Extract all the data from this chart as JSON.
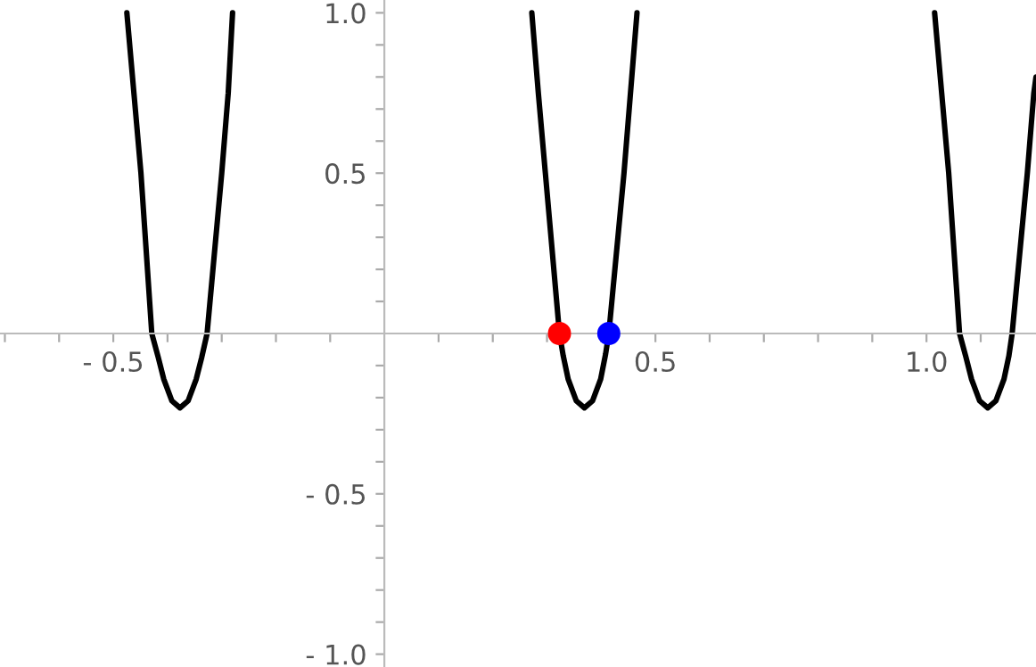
{
  "chart_data": {
    "type": "line",
    "series": [
      {
        "color": "#000000",
        "x": [
          -0.475,
          -0.462,
          -0.449,
          -0.429,
          -0.417,
          -0.407,
          -0.392,
          -0.377,
          -0.362,
          -0.347,
          -0.337,
          -0.327,
          -0.3,
          -0.288,
          -0.28
        ],
        "values": [
          1.0,
          0.75,
          0.5,
          0.0,
          -0.075,
          -0.142,
          -0.21,
          -0.232,
          -0.21,
          -0.142,
          -0.075,
          0.0,
          0.5,
          0.75,
          1.0
        ]
      },
      {
        "color": "#000000",
        "x": [
          0.272,
          0.284,
          0.297,
          0.323,
          0.33,
          0.339,
          0.354,
          0.369,
          0.384,
          0.399,
          0.408,
          0.414,
          0.442,
          0.454,
          0.466
        ],
        "values": [
          1.0,
          0.75,
          0.5,
          0.0,
          -0.07,
          -0.142,
          -0.21,
          -0.232,
          -0.21,
          -0.142,
          -0.065,
          0.0,
          0.5,
          0.75,
          1.0
        ]
      },
      {
        "color": "#000000",
        "x": [
          1.015,
          1.028,
          1.041,
          1.061,
          1.073,
          1.083,
          1.098,
          1.113,
          1.128,
          1.143,
          1.152,
          1.158,
          1.186,
          1.198,
          1.202
        ],
        "values": [
          1.0,
          0.75,
          0.5,
          0.0,
          -0.075,
          -0.142,
          -0.21,
          -0.232,
          -0.21,
          -0.142,
          -0.07,
          0.0,
          0.5,
          0.75,
          0.8
        ]
      },
      {
        "type": "scatter",
        "marker": "circle",
        "color": "#ff0000",
        "x": [
          0.323
        ],
        "values": [
          0.0
        ]
      },
      {
        "type": "scatter",
        "marker": "circle",
        "color": "#0000ff",
        "x": [
          0.414
        ],
        "values": [
          0.0
        ]
      }
    ],
    "xlim": [
      -0.709,
      1.202
    ],
    "ylim": [
      -1.04,
      1.04
    ],
    "xticks": [
      {
        "value": -0.7,
        "label": null
      },
      {
        "value": -0.6,
        "label": null
      },
      {
        "value": -0.5,
        "label": "- 0.5"
      },
      {
        "value": -0.4,
        "label": null
      },
      {
        "value": -0.3,
        "label": null
      },
      {
        "value": -0.2,
        "label": null
      },
      {
        "value": -0.1,
        "label": null
      },
      {
        "value": 0.1,
        "label": null
      },
      {
        "value": 0.2,
        "label": null
      },
      {
        "value": 0.3,
        "label": null
      },
      {
        "value": 0.4,
        "label": null
      },
      {
        "value": 0.5,
        "label": "0.5"
      },
      {
        "value": 0.6,
        "label": null
      },
      {
        "value": 0.7,
        "label": null
      },
      {
        "value": 0.8,
        "label": null
      },
      {
        "value": 0.9,
        "label": null
      },
      {
        "value": 1.0,
        "label": "1.0"
      },
      {
        "value": 1.1,
        "label": null
      }
    ],
    "yticks": [
      {
        "value": -1.0,
        "label": "- 1.0"
      },
      {
        "value": -0.9,
        "label": null
      },
      {
        "value": -0.8,
        "label": null
      },
      {
        "value": -0.7,
        "label": null
      },
      {
        "value": -0.6,
        "label": null
      },
      {
        "value": -0.5,
        "label": "- 0.5"
      },
      {
        "value": -0.4,
        "label": null
      },
      {
        "value": -0.3,
        "label": null
      },
      {
        "value": -0.2,
        "label": null
      },
      {
        "value": -0.1,
        "label": null
      },
      {
        "value": 0.1,
        "label": null
      },
      {
        "value": 0.2,
        "label": null
      },
      {
        "value": 0.3,
        "label": null
      },
      {
        "value": 0.4,
        "label": null
      },
      {
        "value": 0.5,
        "label": "0.5"
      },
      {
        "value": 0.6,
        "label": null
      },
      {
        "value": 0.7,
        "label": null
      },
      {
        "value": 0.8,
        "label": null
      },
      {
        "value": 0.9,
        "label": null
      },
      {
        "value": 1.0,
        "label": "1.0"
      }
    ],
    "grid": false
  }
}
